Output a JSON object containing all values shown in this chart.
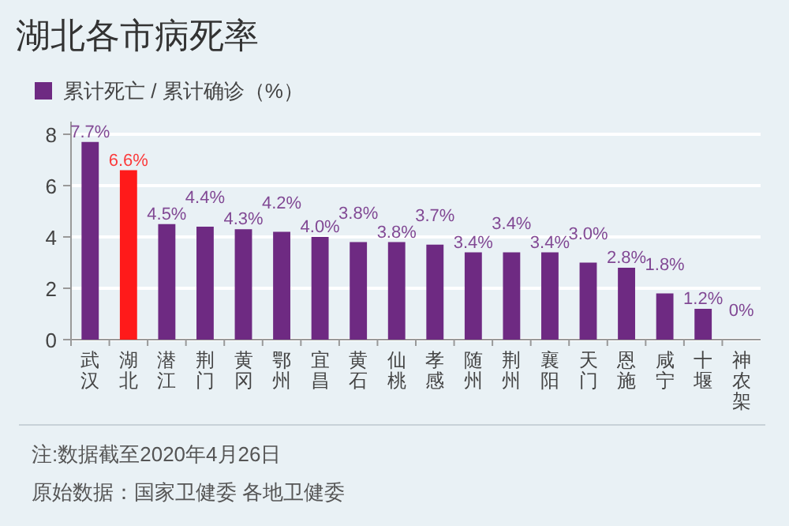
{
  "chart_data": {
    "type": "bar",
    "title": "湖北各市病死率",
    "categories": [
      "武汉",
      "湖北",
      "潜江",
      "荆门",
      "黄冈",
      "鄂州",
      "宜昌",
      "黄石",
      "仙桃",
      "孝感",
      "随州",
      "荆州",
      "襄阳",
      "天门",
      "恩施",
      "咸宁",
      "十堰",
      "神农架"
    ],
    "series": [
      {
        "name": "累计死亡 / 累计确诊（%）",
        "color": "#6e2a82",
        "values": [
          7.7,
          6.6,
          4.5,
          4.4,
          4.3,
          4.2,
          4.0,
          3.8,
          3.8,
          3.7,
          3.4,
          3.4,
          3.4,
          3.0,
          2.8,
          1.8,
          1.2,
          0
        ],
        "colors": [
          "#6e2a82",
          "#ff1a1a",
          "#6e2a82",
          "#6e2a82",
          "#6e2a82",
          "#6e2a82",
          "#6e2a82",
          "#6e2a82",
          "#6e2a82",
          "#6e2a82",
          "#6e2a82",
          "#6e2a82",
          "#6e2a82",
          "#6e2a82",
          "#6e2a82",
          "#6e2a82",
          "#6e2a82",
          "#6e2a82"
        ],
        "value_labels": [
          "7.7%",
          "6.6%",
          "4.5%",
          "4.4%",
          "4.3%",
          "4.2%",
          "4.0%",
          "3.8%",
          "3.8%",
          "3.7%",
          "3.4%",
          "3.4%",
          "3.4%",
          "3.0%",
          "2.8%",
          "1.8%",
          "1.2%",
          "0%"
        ]
      }
    ],
    "ylim": [
      0,
      8
    ],
    "yticks": [
      0,
      2,
      4,
      6,
      8
    ],
    "grid": "y",
    "legend": "top left",
    "annotations": [
      "注:数据截至2020年4月26日",
      "原始数据：国家卫健委 各地卫健委"
    ]
  }
}
